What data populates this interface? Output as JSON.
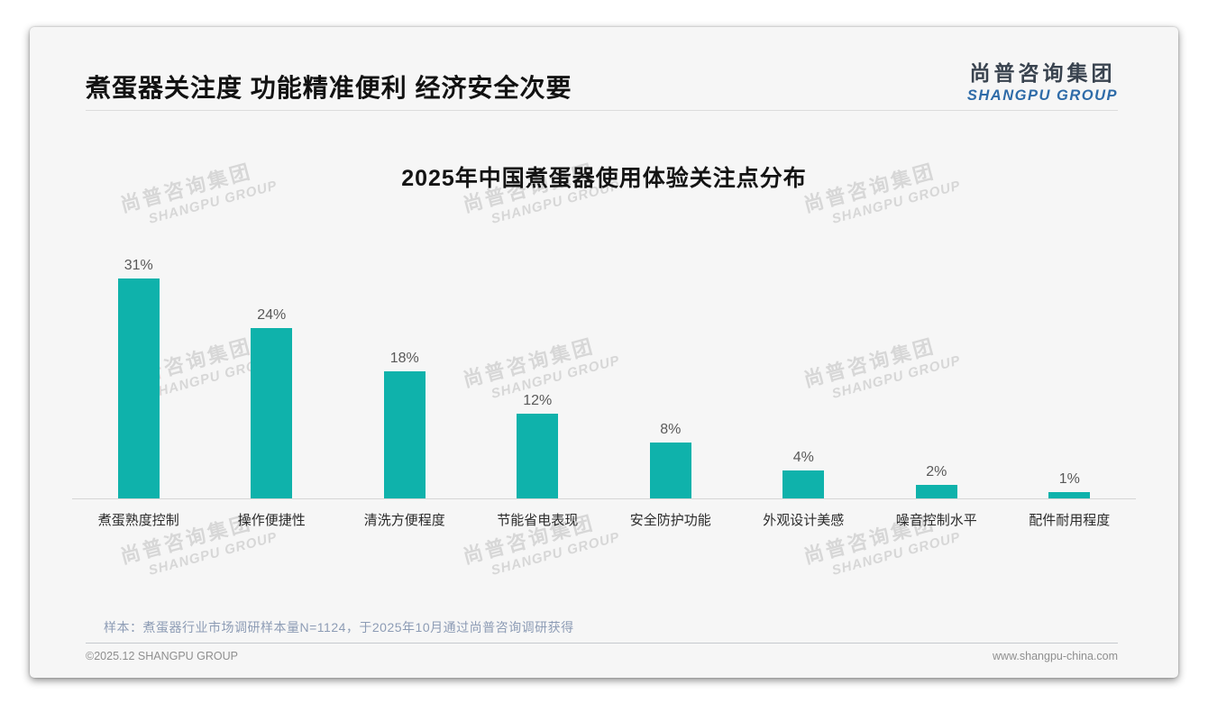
{
  "page": {
    "header": {
      "title": "煮蛋器关注度 功能精准便利 经济安全次要"
    },
    "logo": {
      "cn": "尚普咨询集团",
      "en": "SHANGPU GROUP"
    },
    "watermark": {
      "cn": "尚普咨询集团",
      "en": "SHANGPU GROUP"
    },
    "note": "样本：煮蛋器行业市场调研样本量N=1124，于2025年10月通过尚普咨询调研获得",
    "footer": {
      "left": "©2025.12 SHANGPU GROUP",
      "right": "www.shangpu-china.com"
    }
  },
  "chart_data": {
    "type": "bar",
    "title": "2025年中国煮蛋器使用体验关注点分布",
    "categories": [
      "煮蛋熟度控制",
      "操作便捷性",
      "清洗方便程度",
      "节能省电表现",
      "安全防护功能",
      "外观设计美感",
      "噪音控制水平",
      "配件耐用程度"
    ],
    "values": [
      31,
      24,
      18,
      12,
      8,
      4,
      2,
      1
    ],
    "value_labels": [
      "31%",
      "24%",
      "18%",
      "12%",
      "8%",
      "4%",
      "2%",
      "1%"
    ],
    "bar_color": "#0fb2ab",
    "xlabel": "",
    "ylabel": "",
    "ylim": [
      0,
      35
    ],
    "grid": false,
    "legend": false
  }
}
